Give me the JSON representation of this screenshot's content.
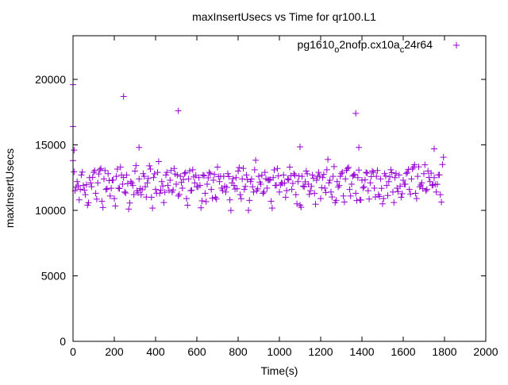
{
  "chart_data": {
    "type": "scatter",
    "title": "maxInsertUsecs vs Time for qr100.L1",
    "xlabel": "Time(s)",
    "ylabel": "maxInsertUsecs",
    "xlim": [
      0,
      2000
    ],
    "ylim": [
      0,
      23333
    ],
    "xticks": [
      0,
      200,
      400,
      600,
      800,
      1000,
      1200,
      1400,
      1600,
      1800,
      2000
    ],
    "yticks": [
      0,
      5000,
      10000,
      15000,
      20000
    ],
    "grid": false,
    "legend_position": "top-right",
    "series": [
      {
        "name": "pg1610_o2nofp.cx10a_c24r64",
        "legend_main": [
          "pg1610",
          "2nofp.cx10a",
          "24r64"
        ],
        "legend_sub": [
          "o",
          "c"
        ],
        "color": "#9400d3",
        "marker": "plus",
        "x_start": 0,
        "x_step": 10,
        "y": [
          13800,
          11500,
          12200,
          10800,
          12700,
          11900,
          11200,
          10400,
          12500,
          11800,
          12900,
          11300,
          12100,
          13100,
          10700,
          12400,
          11600,
          12800,
          11100,
          12300,
          10900,
          12600,
          11700,
          13300,
          12000,
          11400,
          12700,
          10100,
          12200,
          11900,
          13000,
          11500,
          12400,
          11200,
          12800,
          11800,
          12100,
          13400,
          11000,
          12500,
          11600,
          12900,
          11300,
          12200,
          10600,
          12700,
          11900,
          12300,
          11400,
          13200,
          12000,
          11100,
          12600,
          11700,
          12800,
          10900,
          12400,
          11500,
          13100,
          12100,
          11800,
          12500,
          10200,
          12700,
          11300,
          12000,
          12900,
          11600,
          12300,
          11000,
          13300,
          12200,
          11700,
          12600,
          11400,
          12800,
          10800,
          12100,
          11900,
          12500,
          13000,
          11200,
          12400,
          11600,
          12700,
          10000,
          12200,
          11800,
          13100,
          11500,
          12600,
          12000,
          11300,
          12900,
          11700,
          12300,
          10700,
          12500,
          11900,
          13200,
          11400,
          12100,
          12700,
          11000,
          12400,
          13300,
          11600,
          12800,
          11200,
          12200,
          10400,
          12600,
          11800,
          13000,
          12000,
          11500,
          12700,
          11300,
          12300,
          12900,
          10900,
          12500,
          11700,
          13100,
          12100,
          11400,
          12600,
          10600,
          12200,
          11900,
          12800,
          11100,
          12400,
          13200,
          11600,
          12000,
          12700,
          11300,
          12500,
          10800,
          12300,
          11800,
          12900,
          11500,
          12100,
          13000,
          11700,
          12600,
          11200,
          12400,
          10500,
          12800,
          11900,
          12200,
          13100,
          11400,
          12500,
          11700,
          12700,
          11000,
          12300,
          12000,
          12900,
          11600,
          12400,
          13300,
          11300,
          12600,
          11800,
          12100,
          12800,
          11500,
          13000,
          12200,
          11900,
          12500,
          11400,
          12700,
          11200,
          13500
        ],
        "outliers": [
          [
            0,
            19600
          ],
          [
            0,
            16400
          ],
          [
            5,
            14600
          ],
          [
            245,
            18700
          ],
          [
            320,
            14800
          ],
          [
            510,
            17600
          ],
          [
            1100,
            14850
          ],
          [
            1370,
            17400
          ],
          [
            1385,
            14800
          ],
          [
            1750,
            14700
          ]
        ]
      }
    ]
  }
}
